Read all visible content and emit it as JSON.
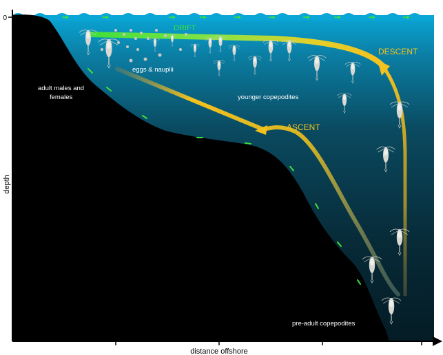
{
  "axes": {
    "x_label": "distance offshore",
    "y_label": "depth",
    "y_origin_label": "0"
  },
  "arrows": {
    "drift": {
      "label": "DRIFT",
      "color": "#3fe03a"
    },
    "descent": {
      "label": "DESCENT",
      "color": "#f4c21f"
    },
    "ascent": {
      "label": "ASCENT",
      "color": "#f4c21f"
    }
  },
  "labels": {
    "eggs": "eggs & nauplii",
    "adults_line1": "adult males and",
    "adults_line2": "females",
    "younger": "younger copepodites",
    "pre_adult": "pre-adult copepodites"
  },
  "colors": {
    "surface": "#0aa6d6",
    "deep_water": "#06222e",
    "seabed": "#000000",
    "copepod": "#d9d9d4",
    "flow_marker": "#3fe03a"
  }
}
